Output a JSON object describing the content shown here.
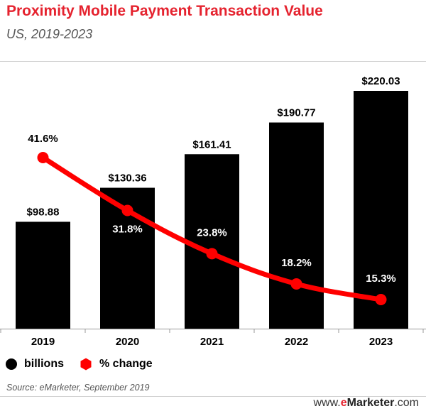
{
  "header": {
    "title": "Proximity Mobile Payment Transaction Value",
    "subtitle": "US, 2019-2023"
  },
  "chart_data": {
    "type": "bar",
    "categories": [
      "2019",
      "2020",
      "2021",
      "2022",
      "2023"
    ],
    "series": [
      {
        "name": "billions",
        "type": "bar",
        "values": [
          98.88,
          130.36,
          161.41,
          190.77,
          220.03
        ],
        "labels": [
          "$98.88",
          "$130.36",
          "$161.41",
          "$190.77",
          "$220.03"
        ],
        "color": "#000000"
      },
      {
        "name": "% change",
        "type": "line",
        "values": [
          41.6,
          31.8,
          23.8,
          18.2,
          15.3
        ],
        "labels": [
          "41.6%",
          "31.8%",
          "23.8%",
          "18.2%",
          "15.3%"
        ],
        "color": "#ff0000"
      }
    ],
    "title": "Proximity Mobile Payment Transaction Value",
    "subtitle": "US, 2019-2023",
    "xlabel": "",
    "ylabel": "",
    "grid": false,
    "legend": "bottom-left"
  },
  "legend": {
    "bars_label": "billions",
    "line_label": "% change"
  },
  "footer": {
    "source": "Source: eMarketer, September 2019",
    "brand_prefix": "www.",
    "brand_e": "e",
    "brand_name": "Marketer",
    "brand_suffix": ".com"
  }
}
